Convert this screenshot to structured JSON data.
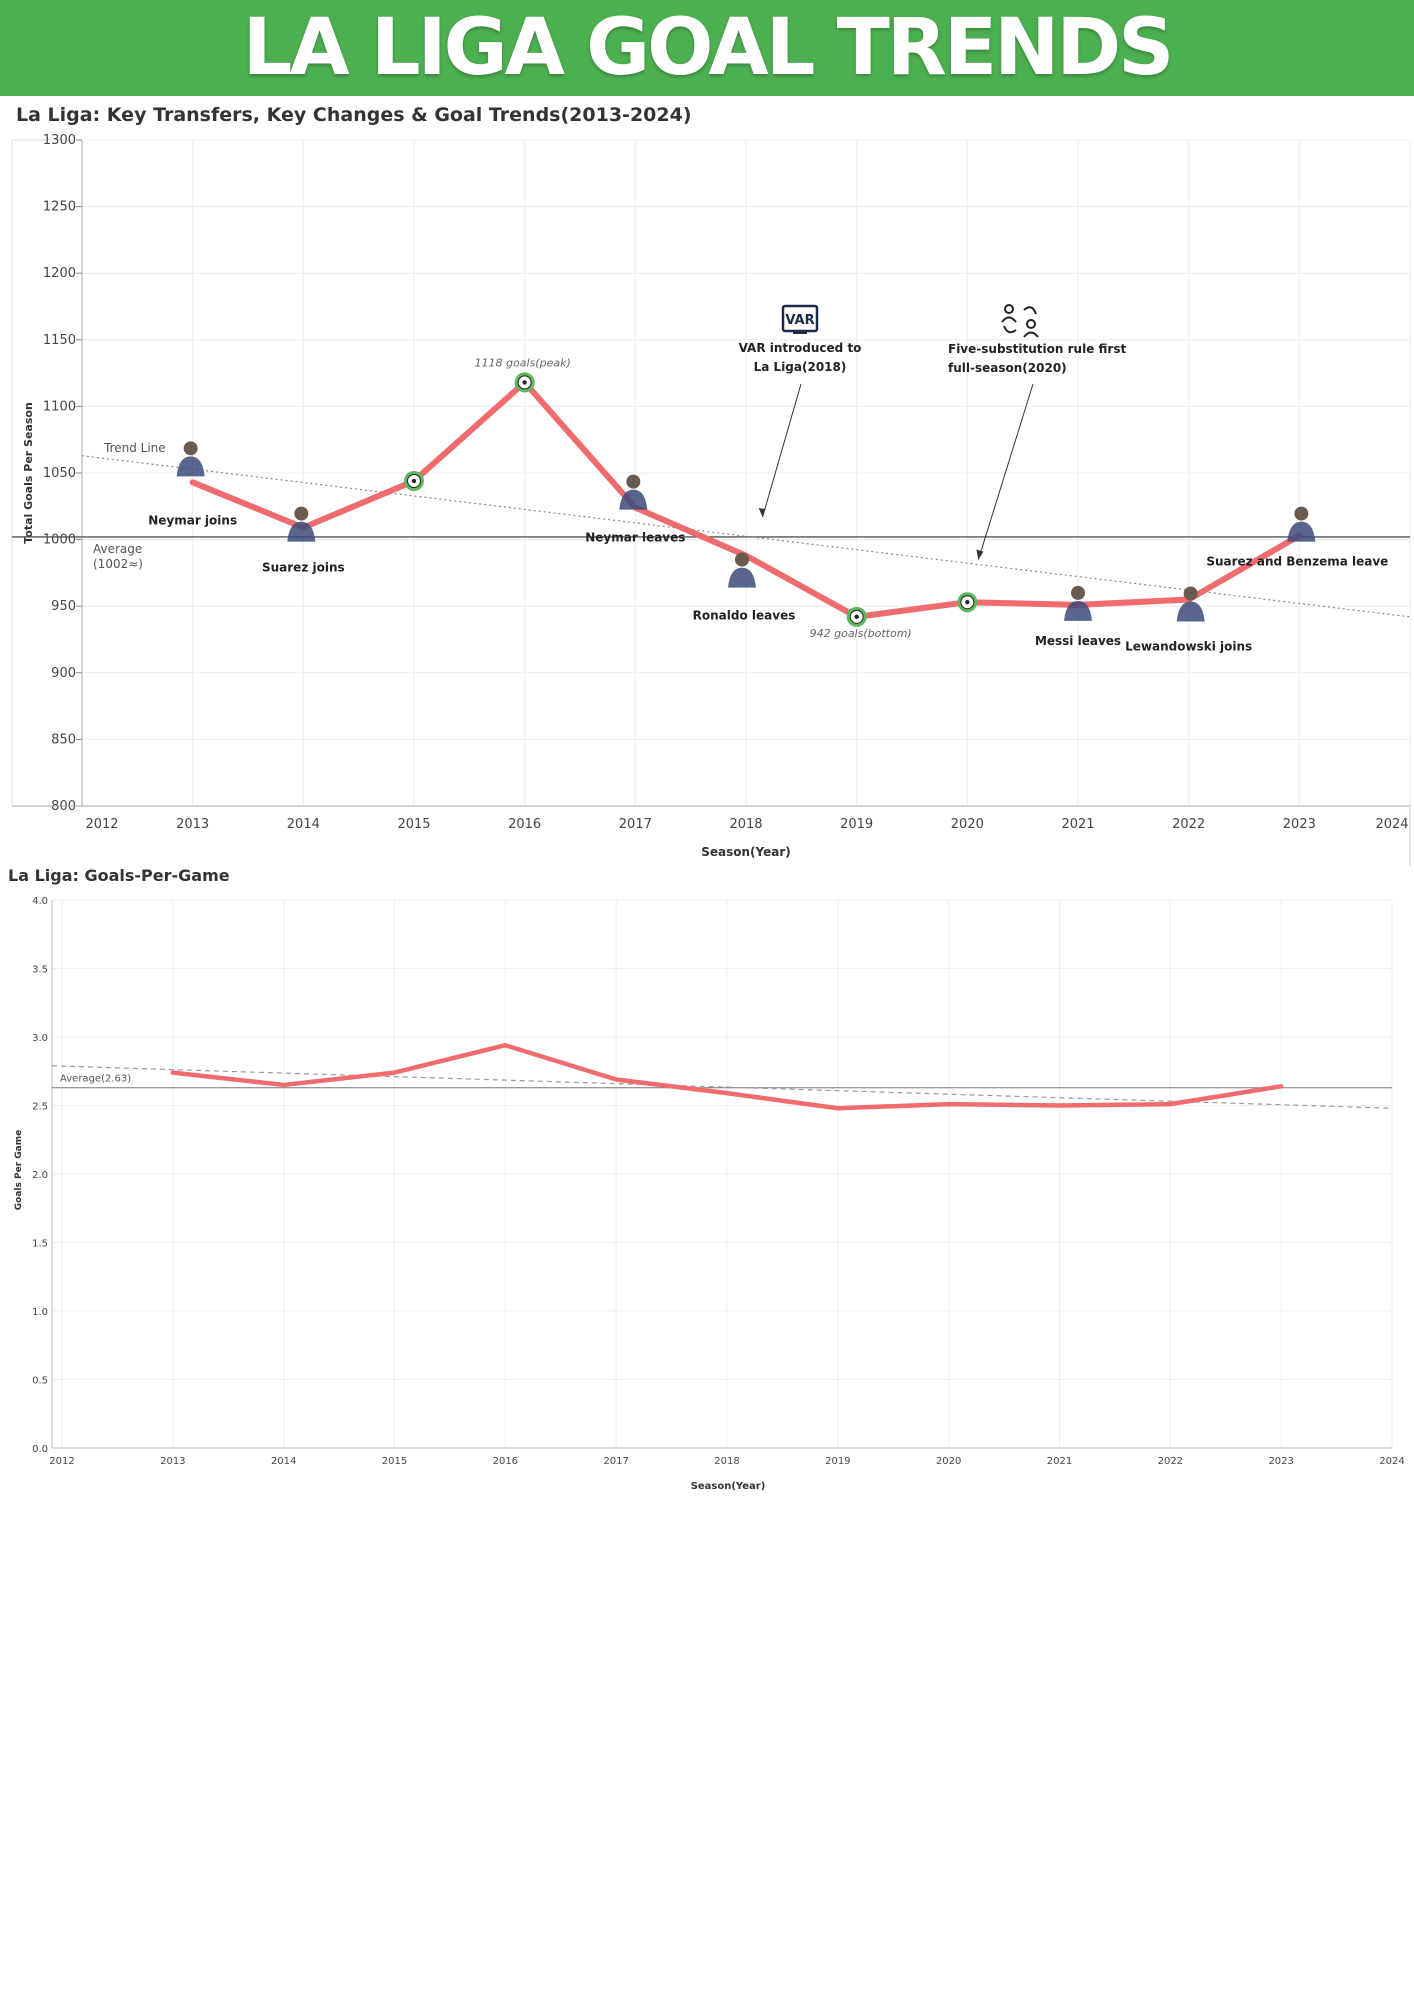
{
  "header": {
    "title": "LA LIGA GOAL TRENDS",
    "accent": "#4caf50"
  },
  "chart_data": [
    {
      "type": "line",
      "title": "La Liga: Key Transfers, Key Changes & Goal Trends(2013-2024)",
      "xlabel": "Season(Year)",
      "ylabel": "Total Goals Per Season",
      "xlim": [
        2012,
        2024
      ],
      "ylim": [
        800,
        1300
      ],
      "x_ticks": [
        2012,
        2013,
        2014,
        2015,
        2016,
        2017,
        2018,
        2019,
        2020,
        2021,
        2022,
        2023,
        2024
      ],
      "y_ticks": [
        800,
        850,
        900,
        950,
        1000,
        1050,
        1100,
        1150,
        1200,
        1250,
        1300
      ],
      "grid": true,
      "line_color": "#ef6b6e",
      "series": [
        {
          "x": [
            2013,
            2014,
            2015,
            2016,
            2017,
            2018,
            2019,
            2020,
            2021,
            2022,
            2023
          ],
          "y": [
            1043,
            1009,
            1044,
            1118,
            1024,
            988,
            942,
            953,
            951,
            955,
            1003
          ]
        }
      ],
      "reference_lines": {
        "average": {
          "value": 1002,
          "label_line1": "Average",
          "label_line2": "(1002≈)"
        },
        "trend": {
          "start": [
            2012,
            1063
          ],
          "end": [
            2024,
            942
          ],
          "label": "Trend Line"
        }
      },
      "point_labels": [
        {
          "x": 2016,
          "y": 1118,
          "text": "1118 goals(peak)"
        },
        {
          "x": 2019,
          "y": 942,
          "text": "942 goals(bottom)"
        }
      ],
      "ball_markers": [
        2015,
        2016,
        2019,
        2020
      ],
      "event_labels": [
        {
          "x": 2013,
          "y": 1043,
          "text": "Neymar joins"
        },
        {
          "x": 2014,
          "y": 1009,
          "text": "Suarez joins"
        },
        {
          "x": 2017,
          "y": 1024,
          "text": "Neymar leaves"
        },
        {
          "x": 2018,
          "y": 988,
          "text": "Ronaldo leaves"
        },
        {
          "x": 2021,
          "y": 951,
          "text": "Messi leaves"
        },
        {
          "x": 2022,
          "y": 955,
          "text": "Lewandowski joins"
        },
        {
          "x": 2023,
          "y": 1003,
          "text": "Suarez and Benzema leave"
        }
      ],
      "callouts": [
        {
          "icon": "var-monitor-icon",
          "icon_text": "VAR",
          "line1": "VAR introduced to",
          "line2": "La Liga(2018)",
          "target": [
            2018.15,
            1017
          ]
        },
        {
          "icon": "substitution-icon",
          "line1": "Five-substitution rule first",
          "line2": "full-season(2020)",
          "target": [
            2020.1,
            985
          ]
        }
      ]
    },
    {
      "type": "line",
      "title": "La Liga: Goals-Per-Game",
      "xlabel": "Season(Year)",
      "ylabel": "Goals Per Game",
      "xlim": [
        2012,
        2024
      ],
      "ylim": [
        0.0,
        4.0
      ],
      "x_ticks": [
        2012,
        2013,
        2014,
        2015,
        2016,
        2017,
        2018,
        2019,
        2020,
        2021,
        2022,
        2023,
        2024
      ],
      "y_ticks": [
        "0.0",
        "0.5",
        "1.0",
        "1.5",
        "2.0",
        "2.5",
        "3.0",
        "3.5",
        "4.0"
      ],
      "grid": true,
      "line_color": "#ef6b6e",
      "series": [
        {
          "x": [
            2013,
            2014,
            2015,
            2016,
            2017,
            2018,
            2019,
            2020,
            2021,
            2022,
            2023
          ],
          "y": [
            2.74,
            2.65,
            2.74,
            2.94,
            2.69,
            2.59,
            2.48,
            2.51,
            2.5,
            2.51,
            2.64
          ]
        }
      ],
      "reference_lines": {
        "average": {
          "value": 2.63,
          "label": "Average(2.63)"
        },
        "trend": {
          "start": [
            2012,
            2.79
          ],
          "end": [
            2024,
            2.48
          ]
        }
      }
    }
  ]
}
